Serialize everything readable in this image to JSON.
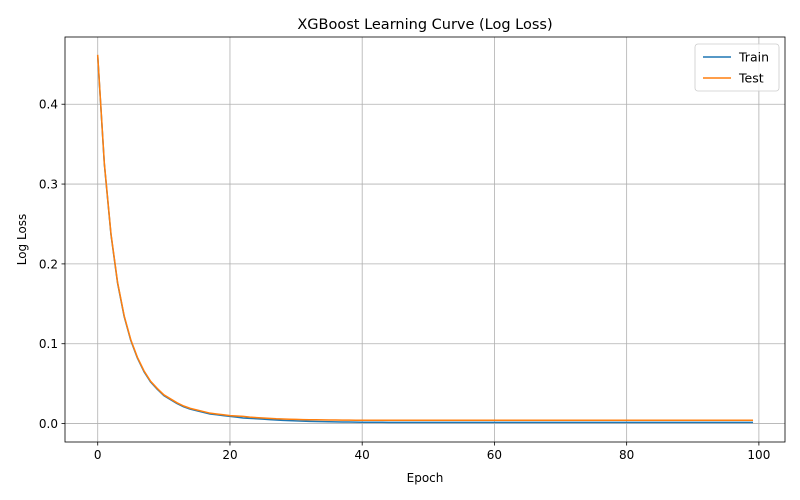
{
  "chart_data": {
    "type": "line",
    "title": "XGBoost Learning Curve (Log Loss)",
    "xlabel": "Epoch",
    "ylabel": "Log Loss",
    "xlim": [
      -4.95,
      103.95
    ],
    "ylim": [
      -0.0231,
      0.4842
    ],
    "xticks": [
      0,
      20,
      40,
      60,
      80,
      100
    ],
    "yticks": [
      0.0,
      0.1,
      0.2,
      0.3,
      0.4
    ],
    "xtick_labels": [
      "0",
      "20",
      "40",
      "60",
      "80",
      "100"
    ],
    "ytick_labels": [
      "0.0",
      "0.1",
      "0.2",
      "0.3",
      "0.4"
    ],
    "grid": true,
    "legend_position": "top-right",
    "series": [
      {
        "name": "Train",
        "color": "#1f77b4",
        "x": [
          0,
          1,
          2,
          3,
          4,
          5,
          6,
          7,
          8,
          9,
          10,
          11,
          12,
          13,
          14,
          15,
          16,
          17,
          18,
          19,
          20,
          21,
          22,
          23,
          24,
          25,
          26,
          27,
          28,
          29,
          30,
          31,
          32,
          33,
          34,
          35,
          36,
          37,
          38,
          39,
          40,
          41,
          42,
          43,
          44,
          45,
          46,
          47,
          48,
          49,
          50,
          51,
          52,
          53,
          54,
          55,
          56,
          57,
          58,
          59,
          60,
          61,
          62,
          63,
          64,
          65,
          66,
          67,
          68,
          69,
          70,
          71,
          72,
          73,
          74,
          75,
          76,
          77,
          78,
          79,
          80,
          81,
          82,
          83,
          84,
          85,
          86,
          87,
          88,
          89,
          90,
          91,
          92,
          93,
          94,
          95,
          96,
          97,
          98,
          99
        ],
        "values": [
          0.46,
          0.325,
          0.237,
          0.176,
          0.134,
          0.104,
          0.082,
          0.065,
          0.052,
          0.043,
          0.035,
          0.03,
          0.025,
          0.021,
          0.018,
          0.016,
          0.014,
          0.012,
          0.011,
          0.01,
          0.009,
          0.008,
          0.007,
          0.0065,
          0.006,
          0.0055,
          0.005,
          0.0045,
          0.004,
          0.0036,
          0.0033,
          0.003,
          0.0028,
          0.0026,
          0.0024,
          0.0022,
          0.0021,
          0.002,
          0.0019,
          0.0018,
          0.0017,
          0.0017,
          0.0016,
          0.0016,
          0.0015,
          0.0015,
          0.0015,
          0.0015,
          0.0015,
          0.0015,
          0.0015,
          0.0015,
          0.0015,
          0.0015,
          0.0015,
          0.0015,
          0.0015,
          0.0015,
          0.0015,
          0.0015,
          0.0015,
          0.0015,
          0.0015,
          0.0015,
          0.0015,
          0.0015,
          0.0015,
          0.0015,
          0.0015,
          0.0015,
          0.0015,
          0.0015,
          0.0015,
          0.0015,
          0.0015,
          0.0015,
          0.0015,
          0.0015,
          0.0015,
          0.0015,
          0.0015,
          0.0015,
          0.0015,
          0.0015,
          0.0015,
          0.0015,
          0.0015,
          0.0015,
          0.0015,
          0.0015,
          0.0015,
          0.0015,
          0.0015,
          0.0015,
          0.0015,
          0.0015,
          0.0015,
          0.0015,
          0.0015,
          0.0015
        ]
      },
      {
        "name": "Test",
        "color": "#ff7f0e",
        "x": [
          0,
          1,
          2,
          3,
          4,
          5,
          6,
          7,
          8,
          9,
          10,
          11,
          12,
          13,
          14,
          15,
          16,
          17,
          18,
          19,
          20,
          21,
          22,
          23,
          24,
          25,
          26,
          27,
          28,
          29,
          30,
          31,
          32,
          33,
          34,
          35,
          36,
          37,
          38,
          39,
          40,
          41,
          42,
          43,
          44,
          45,
          46,
          47,
          48,
          49,
          50,
          51,
          52,
          53,
          54,
          55,
          56,
          57,
          58,
          59,
          60,
          61,
          62,
          63,
          64,
          65,
          66,
          67,
          68,
          69,
          70,
          71,
          72,
          73,
          74,
          75,
          76,
          77,
          78,
          79,
          80,
          81,
          82,
          83,
          84,
          85,
          86,
          87,
          88,
          89,
          90,
          91,
          92,
          93,
          94,
          95,
          96,
          97,
          98,
          99
        ],
        "values": [
          0.461,
          0.326,
          0.238,
          0.177,
          0.135,
          0.105,
          0.083,
          0.066,
          0.053,
          0.044,
          0.036,
          0.031,
          0.026,
          0.022,
          0.019,
          0.017,
          0.015,
          0.013,
          0.012,
          0.011,
          0.01,
          0.0095,
          0.009,
          0.008,
          0.0075,
          0.007,
          0.0065,
          0.006,
          0.0057,
          0.0054,
          0.0052,
          0.005,
          0.0048,
          0.0047,
          0.0046,
          0.0045,
          0.0044,
          0.0043,
          0.0043,
          0.0042,
          0.0042,
          0.0042,
          0.0041,
          0.0041,
          0.0041,
          0.0041,
          0.0041,
          0.0041,
          0.0041,
          0.0041,
          0.0041,
          0.0041,
          0.0041,
          0.0041,
          0.0041,
          0.0041,
          0.0041,
          0.0041,
          0.0041,
          0.0041,
          0.0041,
          0.0041,
          0.0041,
          0.0041,
          0.0041,
          0.0041,
          0.0041,
          0.0041,
          0.0041,
          0.0041,
          0.0041,
          0.0041,
          0.0041,
          0.0041,
          0.0041,
          0.0041,
          0.0041,
          0.0041,
          0.0041,
          0.0041,
          0.0041,
          0.0041,
          0.0041,
          0.0041,
          0.0041,
          0.0041,
          0.0041,
          0.0041,
          0.0041,
          0.0041,
          0.0041,
          0.0041,
          0.0041,
          0.0041,
          0.0041,
          0.0041,
          0.0041,
          0.0041,
          0.0041,
          0.0041
        ]
      }
    ]
  }
}
